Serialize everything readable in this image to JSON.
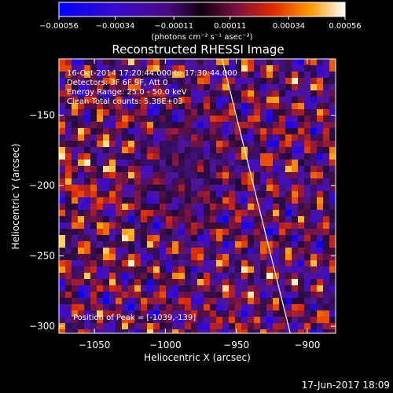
{
  "chart_data": {
    "type": "heatmap",
    "title": "Reconstructed RHESSI Image",
    "xlabel": "Heliocentric X (arcsec)",
    "ylabel": "Heliocentric Y (arcsec)",
    "xlim": [
      -1075,
      -880
    ],
    "ylim": [
      -305,
      -110
    ],
    "x_ticks": [
      -1050,
      -1000,
      -950,
      -900
    ],
    "x_tick_labels": [
      "−1050",
      "−1000",
      "−950",
      "−900"
    ],
    "y_ticks": [
      -300,
      -250,
      -200,
      -150
    ],
    "y_tick_labels": [
      "−300",
      "−250",
      "−200",
      "−150"
    ],
    "colorbar": {
      "range": [
        -0.00056,
        0.00056
      ],
      "ticks": [
        -0.00056,
        -0.00034,
        -0.00011,
        0.00011,
        0.00034,
        0.00056
      ],
      "tick_labels": [
        "−0.00056",
        "−0.00034",
        "−0.00011",
        "0.00011",
        "0.00034",
        "0.00056"
      ],
      "unit_label": "(photons cm⁻² s⁻¹ asec⁻²)",
      "colors": [
        "#0000ff",
        "#5a0aa0",
        "#1a0a2a",
        "#7a1040",
        "#e03000",
        "#ff9a00",
        "#ffffff"
      ]
    },
    "annotations": [
      "16-Oct-2014 17:20:44.000 to 17:30:44.000",
      "Detectors: 3F 6F 9F, Att 0",
      "Energy Range: 25.0 - 50.0 keV",
      "Clean    Total counts: 5.38E+03"
    ],
    "peak_label": "Position of Peak = [-1039,-139]",
    "peak": [
      -1039,
      -139
    ],
    "limb_line": [
      [
        -960,
        -110
      ],
      [
        -912,
        -305
      ]
    ],
    "grid": false
  },
  "timestamp": "17-Jun-2017 18:09"
}
